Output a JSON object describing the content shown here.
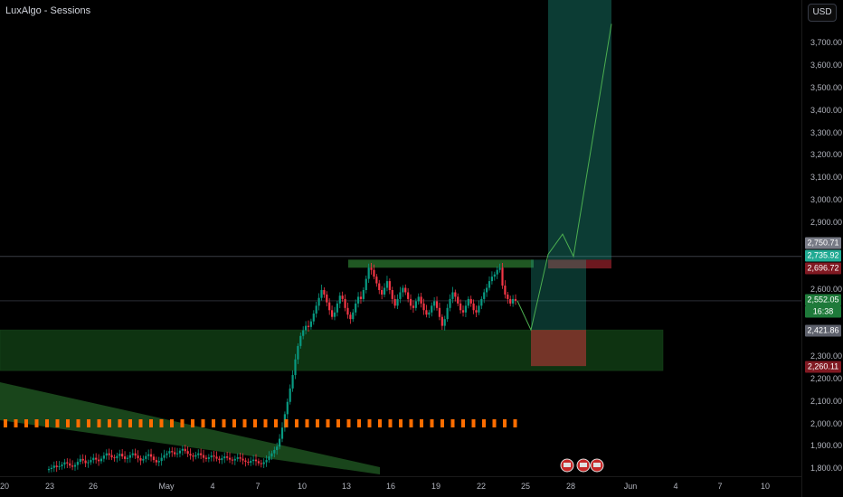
{
  "indicator": {
    "name": "LuxAlgo - Sessions"
  },
  "currency_button": "USD",
  "price_axis": {
    "ticks": [
      "3,700.00",
      "3,600.00",
      "3,500.00",
      "3,400.00",
      "3,300.00",
      "3,200.00",
      "3,100.00",
      "3,000.00",
      "2,900.00",
      "2,600.00",
      "2,300.00",
      "2,200.00",
      "2,100.00",
      "2,000.00",
      "1,900.00",
      "1,800.00"
    ],
    "badges": [
      {
        "text": "2,750.71",
        "color": "#787b86"
      },
      {
        "text": "2,735.92",
        "color": "#22ab94"
      },
      {
        "text": "2,696.72",
        "color": "#801922"
      },
      {
        "text": "2,552.05",
        "color": "#1e7a3a"
      },
      {
        "text": "16:38",
        "color": "#1e7a3a"
      },
      {
        "text": "2,421.86",
        "color": "#5d606b"
      },
      {
        "text": "2,260.11",
        "color": "#801922"
      }
    ]
  },
  "time_axis": {
    "ticks": [
      "20",
      "23",
      "26",
      "May",
      "4",
      "7",
      "10",
      "13",
      "16",
      "19",
      "22",
      "25",
      "28",
      "Jun",
      "4",
      "7",
      "10"
    ]
  },
  "chart_data": {
    "type": "candlestick",
    "symbol_price_last": 2552.05,
    "countdown": "16:38",
    "price_range_visible": [
      1780,
      3790
    ],
    "close_series": [
      1800,
      1805,
      1815,
      1808,
      1812,
      1820,
      1830,
      1825,
      1815,
      1810,
      1818,
      1832,
      1845,
      1838,
      1826,
      1830,
      1840,
      1850,
      1842,
      1835,
      1846,
      1860,
      1870,
      1862,
      1852,
      1848,
      1858,
      1868,
      1856,
      1845,
      1850,
      1862,
      1870,
      1860,
      1848,
      1838,
      1845,
      1858,
      1866,
      1855,
      1840,
      1830,
      1836,
      1850,
      1862,
      1870,
      1880,
      1875,
      1866,
      1870,
      1882,
      1890,
      1880,
      1868,
      1860,
      1855,
      1862,
      1870,
      1862,
      1850,
      1845,
      1852,
      1860,
      1855,
      1846,
      1840,
      1848,
      1856,
      1850,
      1842,
      1838,
      1845,
      1852,
      1846,
      1838,
      1832,
      1828,
      1836,
      1842,
      1835,
      1826,
      1822,
      1830,
      1840,
      1856,
      1870,
      1885,
      1900,
      1935,
      1985,
      2045,
      2100,
      2160,
      2220,
      2290,
      2350,
      2395,
      2420,
      2440,
      2435,
      2460,
      2495,
      2530,
      2565,
      2600,
      2580,
      2545,
      2510,
      2480,
      2500,
      2540,
      2575,
      2560,
      2520,
      2490,
      2470,
      2500,
      2540,
      2570,
      2560,
      2600,
      2650,
      2700,
      2690,
      2660,
      2630,
      2600,
      2580,
      2610,
      2640,
      2600,
      2560,
      2530,
      2560,
      2590,
      2610,
      2590,
      2560,
      2530,
      2520,
      2550,
      2570,
      2540,
      2510,
      2490,
      2500,
      2530,
      2550,
      2520,
      2480,
      2440,
      2470,
      2520,
      2560,
      2590,
      2570,
      2540,
      2510,
      2500,
      2530,
      2560,
      2540,
      2510,
      2500,
      2530,
      2560,
      2590,
      2610,
      2640,
      2660,
      2670,
      2690,
      2700,
      2620,
      2580,
      2560,
      2540,
      2560,
      2552
    ],
    "zones": [
      {
        "name": "demand-zone",
        "from": 2260,
        "to": 2421.86
      },
      {
        "name": "resistance-zone",
        "from": 2696.72,
        "to": 2735.92
      }
    ],
    "trade_setups": [
      {
        "entry": 2735.92,
        "stop": 2696.72,
        "target": 3790
      },
      {
        "entry": 2421.86,
        "stop": 2260.11,
        "target": 2735.92
      }
    ],
    "projection": [
      2552.05,
      2421.86,
      2760,
      2850,
      2750.71,
      3790
    ]
  },
  "colors": {
    "bull": "#089981",
    "bear": "#f23645",
    "demand": "#1b5e20",
    "tp": "#22ab94",
    "sl": "#f23645",
    "session": "#ff6d00",
    "channel": "#2e7d32",
    "projection": "#4caf50"
  }
}
